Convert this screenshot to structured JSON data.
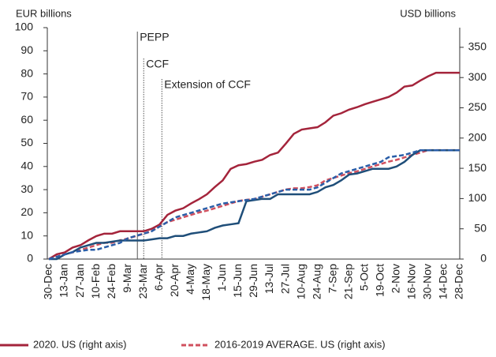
{
  "chart_data": {
    "type": "line",
    "ylabel": "EUR billions",
    "y2label": "USD billions",
    "categories": [
      "30-Dec",
      null,
      "13-Jan",
      null,
      "27-Jan",
      null,
      "10-Feb",
      null,
      "24-Feb",
      null,
      "9-Mar",
      null,
      "23-Mar",
      null,
      "6-Apr",
      null,
      "20-Apr",
      null,
      "4-May",
      null,
      "18-May",
      null,
      "1-Jun",
      null,
      "15-Jun",
      null,
      "29-Jun",
      null,
      "13-Jul",
      null,
      "27-Jul",
      null,
      "10-Aug",
      null,
      "24-Aug",
      null,
      "7-Sep",
      null,
      "21-Sep",
      null,
      "5-Oct",
      null,
      "19-Oct",
      null,
      "2-Nov",
      null,
      "16-Nov",
      null,
      "30-Nov",
      null,
      "14-Dec",
      null,
      "28-Dec"
    ],
    "series": [
      {
        "name": "2020. US (right axis)",
        "color": "#a4243b",
        "dash": false,
        "axis": "y2",
        "values": [
          0,
          8,
          11,
          19,
          23,
          31,
          38,
          42,
          42,
          46,
          46,
          46,
          46,
          50,
          57,
          73,
          80,
          84,
          92,
          99,
          107,
          119,
          130,
          149,
          155,
          157,
          161,
          164,
          172,
          176,
          191,
          207,
          214,
          216,
          218,
          226,
          237,
          241,
          247,
          251,
          256,
          260,
          264,
          268,
          275,
          285,
          287,
          295,
          302,
          308,
          308,
          308,
          308
        ]
      },
      {
        "name": "2016-2019 AVERAGE. US (right axis)",
        "color": "#d0505e",
        "dash": true,
        "axis": "y2",
        "values": [
          0,
          4,
          8,
          11,
          15,
          19,
          23,
          27,
          27,
          31,
          34,
          38,
          42,
          46,
          54,
          61,
          65,
          69,
          73,
          77,
          80,
          84,
          88,
          92,
          96,
          98,
          99,
          103,
          107,
          111,
          115,
          117,
          117,
          119,
          122,
          130,
          134,
          138,
          142,
          145,
          149,
          153,
          157,
          161,
          164,
          168,
          172,
          176,
          180,
          180,
          180,
          180,
          180
        ]
      },
      {
        "color": "#1f4e79",
        "dash": false,
        "values": [
          0,
          0,
          2,
          3,
          5,
          6,
          7,
          7,
          7.5,
          8,
          8,
          8,
          8,
          8.5,
          9,
          9,
          10,
          10,
          11,
          11.5,
          12,
          13.5,
          14.5,
          15,
          15.5,
          25,
          25.5,
          26,
          26,
          28,
          28,
          28,
          28,
          28,
          29,
          31,
          32,
          34,
          36.5,
          37,
          38,
          39,
          39,
          39,
          40,
          42,
          45,
          47,
          47,
          47,
          47,
          47,
          47
        ]
      },
      {
        "color": "#2a5ea8",
        "dash": true,
        "values": [
          0,
          1,
          2,
          3,
          3.5,
          4,
          4,
          5,
          6,
          7,
          9,
          10,
          11,
          12,
          14,
          16,
          18,
          19,
          20,
          21,
          22,
          23,
          24,
          24.5,
          25,
          25.5,
          26,
          27,
          28,
          29,
          30,
          30,
          30,
          30,
          31,
          33,
          35,
          37,
          38,
          39,
          40,
          41,
          42,
          44,
          44.5,
          45,
          46,
          47,
          47,
          47,
          47,
          47,
          47
        ]
      }
    ],
    "annotations": [
      "PEPP",
      "CCF",
      "Extension of CCF"
    ],
    "ylim": [
      0,
      100
    ],
    "yticks": [
      0,
      10,
      20,
      30,
      40,
      50,
      60,
      70,
      80,
      90,
      100
    ],
    "y2lim": [
      0,
      382.5
    ],
    "y2ticks": [
      0,
      50,
      100,
      150,
      200,
      250,
      300,
      350
    ],
    "grid": false
  }
}
